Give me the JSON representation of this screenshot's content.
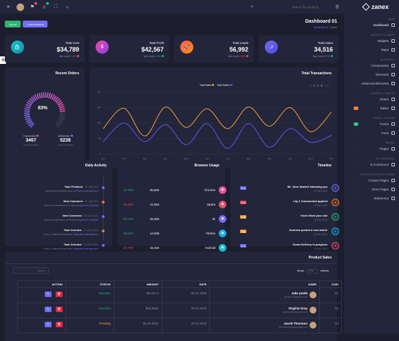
{
  "search": {
    "placeholder": "Search for anything"
  },
  "brand": {
    "name": "zanex"
  },
  "sidebar": {
    "sections": [
      {
        "label": "MAIN",
        "items": [
          {
            "label": "Dashboard",
            "arrow": false
          }
        ]
      },
      {
        "label": "WIDGETS & MAPS",
        "items": [
          {
            "label": "Widgets",
            "arrow": false
          },
          {
            "label": "Maps",
            "arrow": true
          }
        ]
      },
      {
        "label": "ELEMENTS",
        "items": [
          {
            "label": "Components",
            "arrow": true
          },
          {
            "label": "Elements",
            "arrow": true
          },
          {
            "label": "Advanced Elements",
            "arrow": true
          }
        ]
      },
      {
        "label": "CHARTS & TABLES",
        "items": [
          {
            "label": "Charts",
            "arrow": true
          },
          {
            "label": "Tables",
            "badge": "2",
            "badge_color": "#f07c29"
          }
        ]
      },
      {
        "label": "FORMS & ICONS",
        "items": [
          {
            "label": "Forms",
            "badge": "5",
            "badge_color": "#2bb673"
          },
          {
            "label": "Icons",
            "arrow": true
          }
        ]
      },
      {
        "label": "PAGES",
        "items": [
          {
            "label": "Pages",
            "arrow": true
          }
        ]
      },
      {
        "label": "E-COMMERCE",
        "items": [
          {
            "label": "E-Commerce",
            "arrow": true
          }
        ]
      },
      {
        "label": "CUSTOM & ERROR PAGES",
        "items": [
          {
            "label": "Custom Pages",
            "arrow": true
          },
          {
            "label": "Error Pages",
            "arrow": true
          },
          {
            "label": "Submenus",
            "arrow": true
          }
        ]
      }
    ]
  },
  "header": {
    "export_label": "Export",
    "add_account_label": "+ Add Account",
    "title": "Dashboard 01",
    "breadcrumb_current": "Dashboard 01",
    "breadcrumb_home": "Home"
  },
  "stats": [
    {
      "label": "Total Cost",
      "value": "$34,789",
      "sub_prefix": "last month",
      "sub_value": "2.6%",
      "sub_color": "#e84c64",
      "gradient": [
        "#12c2c9",
        "#1593a8"
      ],
      "icon": "cart-icon",
      "glyph": "🛍"
    },
    {
      "label": "Total Profit",
      "value": "$42,567",
      "sub_prefix": "last month",
      "sub_value": "0.5%",
      "sub_color": "#2bb673",
      "gradient": [
        "#f54ea2",
        "#8b3cf0"
      ],
      "icon": "dollar-icon",
      "glyph": "$"
    },
    {
      "label": "Total Leads",
      "value": "56,992",
      "sub_prefix": "last month",
      "sub_value": "0.9%",
      "sub_color": "#e84c64",
      "gradient": [
        "#ff5a4f",
        "#f7931e"
      ],
      "icon": "rocket-icon",
      "glyph": "🚀"
    },
    {
      "label": "Total Sales",
      "value": "34,516",
      "sub_prefix": "last month",
      "sub_value": "0.9%",
      "sub_color": "#2bb673",
      "gradient": [
        "#7b6cf6",
        "#4b4ae0"
      ],
      "icon": "trend-icon",
      "glyph": "↗"
    }
  ],
  "recent_orders": {
    "title": "Recent Orders",
    "percent": "83%",
    "percent_value": 0.83,
    "cancelled_label": "Cancelled",
    "cancelled_value": "3467",
    "cancelled_sub": "Last 6 months",
    "delivered_label": "Delivered",
    "delivered_value": "5238",
    "delivered_sub": "Last 6 months"
  },
  "transactions": {
    "title": "Total Transactions",
    "legend_sales": "Total Sales",
    "legend_orders": "Total Orders"
  },
  "chart_data": {
    "type": "line",
    "title": "Total Transactions",
    "x": [
      "Jan",
      "Feb",
      "Mar",
      "Apr",
      "May",
      "Jun",
      "Jul",
      "Aug",
      "Sep",
      "Oct",
      "Nov",
      "Dec"
    ],
    "y_ticks": [
      "0",
      "50",
      "100",
      "150",
      "200"
    ],
    "ylim": [
      0,
      200
    ],
    "series": [
      {
        "name": "Total Sales",
        "color": "#f7a53a",
        "values": [
          82,
          148,
          58,
          152,
          86,
          146,
          82,
          152,
          90,
          150,
          72,
          136
        ]
      },
      {
        "name": "Total Orders",
        "color": "#5b5bf0",
        "values": [
          40,
          100,
          40,
          95,
          30,
          98,
          18,
          98,
          22,
          82,
          38,
          60
        ]
      }
    ],
    "legend": "top-center",
    "grid": true
  },
  "daily_activity": {
    "title": "Daily Activity",
    "items": [
      {
        "title": "Task Finished",
        "time": "09 July 2021",
        "desc_pre": "Adam Berry finished task on",
        "link": "Project Management",
        "dot": "#6e6ef6"
      },
      {
        "title": "New Comment",
        "time": "05 July 2021",
        "desc_pre": "Victoria commented on Project",
        "link": "AngularJS Template",
        "dot": "#f07c29"
      },
      {
        "title": "New Comment",
        "time": "25 June 2021",
        "desc_pre": "Victoria commented on Project",
        "link": "AngularJS Template",
        "dot": "#6e6ef6"
      },
      {
        "title": "Task Overdue",
        "time": "14 June 2021",
        "desc_pre": "Petey Cruiser finished task",
        "link": "Integrated management",
        "dot": "#f07c29"
      },
      {
        "title": "Task Overdue",
        "time": "29 June 2021",
        "desc_pre": "Petey Cruiser finished task",
        "link": "Integrated management",
        "dot": "#6e6ef6"
      }
    ]
  },
  "browser_usage": {
    "title": "Browser Usage",
    "rows": [
      {
        "pct": "12.75%",
        "trend": "↑",
        "trend_color": "#2bb673",
        "count": "35,502",
        "name": "Chrome",
        "icon": "chrome-icon",
        "color": "#f54ea2"
      },
      {
        "pct": "19.15%",
        "trend": "↓",
        "trend_color": "#e84c64",
        "count": "12,563",
        "name": "Opera",
        "icon": "opera-icon",
        "color": "#e84c64"
      },
      {
        "pct": "24.37%",
        "trend": "↑",
        "trend_color": "#2bb673",
        "count": "25,364",
        "name": "IE",
        "icon": "ie-icon",
        "color": "#7b6cf6"
      },
      {
        "pct": "15.63%",
        "trend": "↑",
        "trend_color": "#2bb673",
        "count": "14,635",
        "name": "Firefox",
        "icon": "firefox-icon",
        "color": "#12b5e8"
      },
      {
        "pct": "23.70%",
        "trend": "↓",
        "trend_color": "#e84c64",
        "count": "15,453",
        "name": "Android",
        "icon": "android-icon",
        "color": "#12c2c9"
      }
    ]
  },
  "timeline": {
    "title": "Timeline",
    "rows": [
      {
        "badge": "Tmp",
        "badge_color": "#6e6ef6",
        "title": "Mr. John Started following you",
        "time": "01 Dec 2020",
        "icon": "user-add-icon",
        "color": "#6e6ef6"
      },
      {
        "badge": "Tmp",
        "badge_color": "#e84c64",
        "title": "Lily 1 Commented applied",
        "time": "18 Dec 2020",
        "icon": "comment-icon",
        "color": "#f07c29"
      },
      {
        "badge": "Tmp",
        "badge_color": "#f7a53a",
        "title": "Kevin liked your site",
        "time": "05 Dec 2020",
        "icon": "thumbs-up-icon",
        "color": "#2bb673"
      },
      {
        "badge": "Tmp",
        "badge_color": "#f7a53a",
        "title": "Andrena posted a new article",
        "time": "09 Dec 2020",
        "icon": "article-icon",
        "color": "#12b5e8"
      },
      {
        "badge": "Tmp",
        "badge_color": "#6e6ef6",
        "title": "Sonia Delivery in progress",
        "time": "21 Dec 2020",
        "icon": "delivery-icon",
        "color": "#e84c64"
      }
    ]
  },
  "product_sales": {
    "title": "Product Sales",
    "show_label": "Show",
    "show_value": "10",
    "entries_label": "entries",
    "search_placeholder": "Search...",
    "columns": [
      "ACTION",
      "STATUS",
      "AMOUNT",
      "DATE",
      "NAME",
      "S.NO"
    ],
    "rows": [
      {
        "status": "Success",
        "status_color": "#2bb673",
        "amount": "$5,321.2",
        "date": "20-11-2020",
        "name": "Jake poole",
        "email": "jacke123@gmail.com",
        "sno": "01"
      },
      {
        "status": "Success",
        "status_color": "#2bb673",
        "amount": "$53,3654",
        "date": "20-11-2020",
        "name": "Virginia Gray",
        "email": "virginia456@gmail.com",
        "sno": "02"
      },
      {
        "status": "Pending",
        "status_color": "#f7a53a",
        "amount": "$1,56,3654",
        "date": "20-11-2020",
        "name": "Jacob Thomson",
        "email": "jacobthomson@gmail.com",
        "sno": "03"
      }
    ]
  }
}
